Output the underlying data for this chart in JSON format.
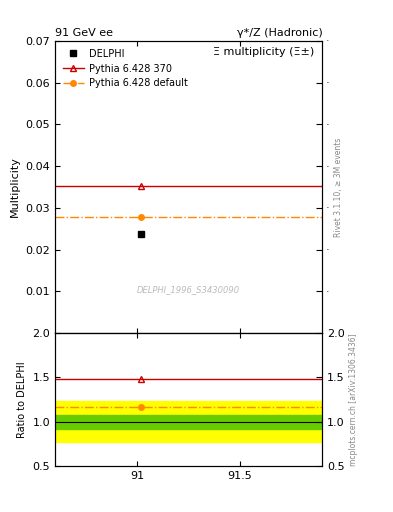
{
  "title_left": "91 GeV ee",
  "title_right": "γ*/Z (Hadronic)",
  "plot_title": "Ξ multiplicity (Ξ±)",
  "watermark": "DELPHI_1996_S3430090",
  "right_label_main": "Rivet 3.1.10, ≥ 3M events",
  "right_label_ratio": "mcplots.cern.ch [arXiv:1306.3436]",
  "xlim": [
    90.6,
    91.9
  ],
  "xticks": [
    91.0,
    91.5
  ],
  "xtick_labels": [
    "91",
    "91.5"
  ],
  "ylim_main": [
    0.0,
    0.07
  ],
  "yticks_main": [
    0.01,
    0.02,
    0.03,
    0.04,
    0.05,
    0.06,
    0.07
  ],
  "ylim_ratio": [
    0.5,
    2.0
  ],
  "yticks_ratio": [
    0.5,
    1.0,
    1.5,
    2.0
  ],
  "delphi_x": 91.02,
  "delphi_y": 0.0238,
  "delphi_color": "#000000",
  "pythia370_y": 0.0352,
  "pythia370_color": "#cc0000",
  "pythia_default_y": 0.0278,
  "pythia_default_color": "#ff8800",
  "marker_x": 91.02,
  "ratio_pythia370": 1.479,
  "ratio_pythia_default": 1.168,
  "green_band_lo": 0.92,
  "green_band_hi": 1.08,
  "yellow_band_lo": 0.77,
  "yellow_band_hi": 1.23,
  "legend_delphi": "DELPHI",
  "legend_pythia370": "Pythia 6.428 370",
  "legend_pythia_default": "Pythia 6.428 default",
  "ylabel_main": "Multiplicity",
  "ylabel_ratio": "Ratio to DELPHI"
}
